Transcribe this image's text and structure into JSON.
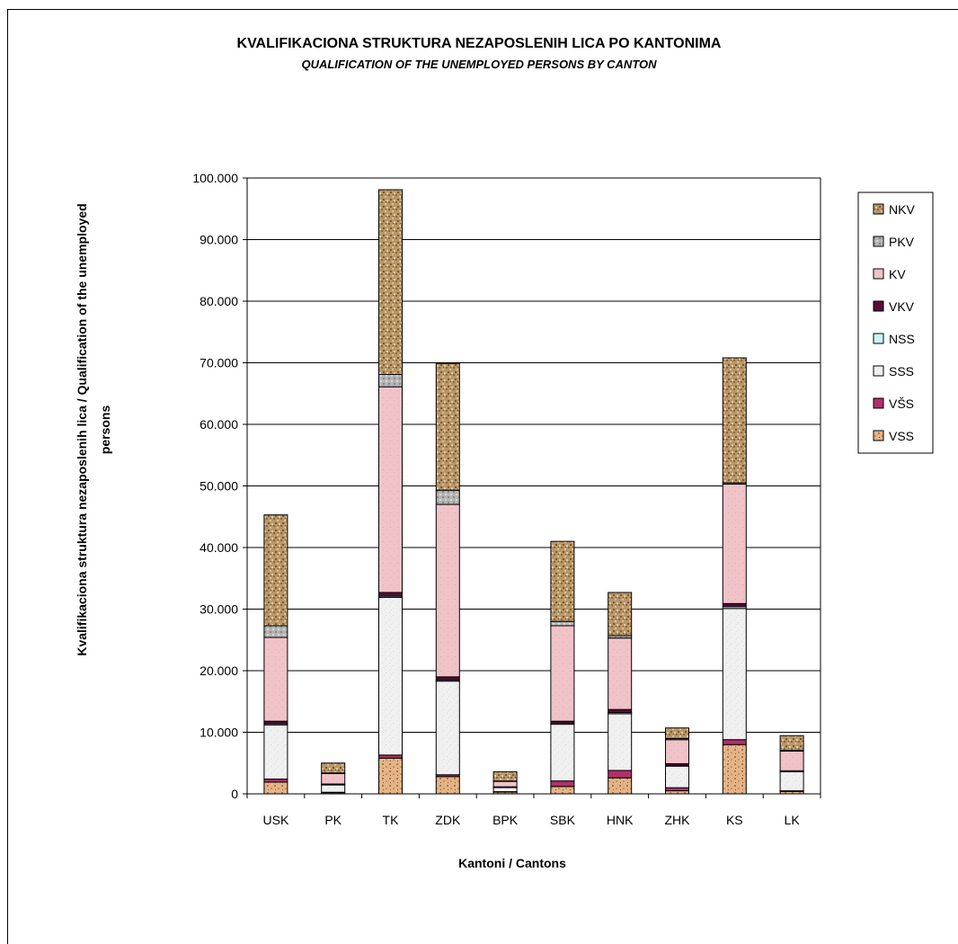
{
  "chart_data": {
    "type": "bar",
    "stacked": true,
    "title": "KVALIFIKACIONA STRUKTURA NEZAPOSLENIH LICA PO KANTONIMA",
    "subtitle": "QUALIFICATION  OF THE UNEMPLOYED PERSONS BY CANTON",
    "xlabel": "Kantoni / Cantons",
    "ylabel_line1": "Kvalifikaciona struktura nezaposlenih lica / Qualification of the unemployed",
    "ylabel_line2": "persons",
    "ylim": [
      0,
      100000
    ],
    "yticks": [
      0,
      10000,
      20000,
      30000,
      40000,
      50000,
      60000,
      70000,
      80000,
      90000,
      100000
    ],
    "ytick_labels": [
      "0",
      "10.000",
      "20.000",
      "30.000",
      "40.000",
      "50.000",
      "60.000",
      "70.000",
      "80.000",
      "90.000",
      "100.000"
    ],
    "grid": true,
    "legend_position": "right",
    "categories": [
      "USK",
      "PK",
      "TK",
      "ZDK",
      "BPK",
      "SBK",
      "HNK",
      "ZHK",
      "KS",
      "LK"
    ],
    "series": [
      {
        "name": "VSS",
        "color": "#e8b98a",
        "values": [
          1900,
          200,
          5800,
          2800,
          300,
          1200,
          2600,
          500,
          8000,
          400
        ]
      },
      {
        "name": "VŠS",
        "color": "#b0306a",
        "values": [
          500,
          60,
          500,
          300,
          60,
          900,
          1200,
          500,
          800,
          100
        ]
      },
      {
        "name": "SSS",
        "color": "#ececec",
        "values": [
          8800,
          1200,
          25600,
          15200,
          700,
          9200,
          9200,
          3500,
          21300,
          3100
        ]
      },
      {
        "name": "NSS",
        "color": "#ccf4f4",
        "values": [
          200,
          50,
          200,
          200,
          30,
          200,
          200,
          100,
          300,
          50
        ]
      },
      {
        "name": "VKV",
        "color": "#5a0a3a",
        "values": [
          400,
          90,
          600,
          500,
          50,
          300,
          500,
          300,
          500,
          100
        ]
      },
      {
        "name": "KV",
        "color": "#efc3c8",
        "values": [
          13600,
          1700,
          33400,
          28000,
          900,
          15500,
          11600,
          3900,
          19400,
          3200
        ]
      },
      {
        "name": "PKV",
        "color": "#a8a8a8",
        "values": [
          1900,
          100,
          2000,
          2300,
          50,
          700,
          400,
          200,
          200,
          100
        ]
      },
      {
        "name": "NKV",
        "color": "#b8966a",
        "values": [
          18000,
          1600,
          30000,
          20600,
          1500,
          13000,
          7000,
          1700,
          20300,
          2400
        ]
      }
    ]
  }
}
